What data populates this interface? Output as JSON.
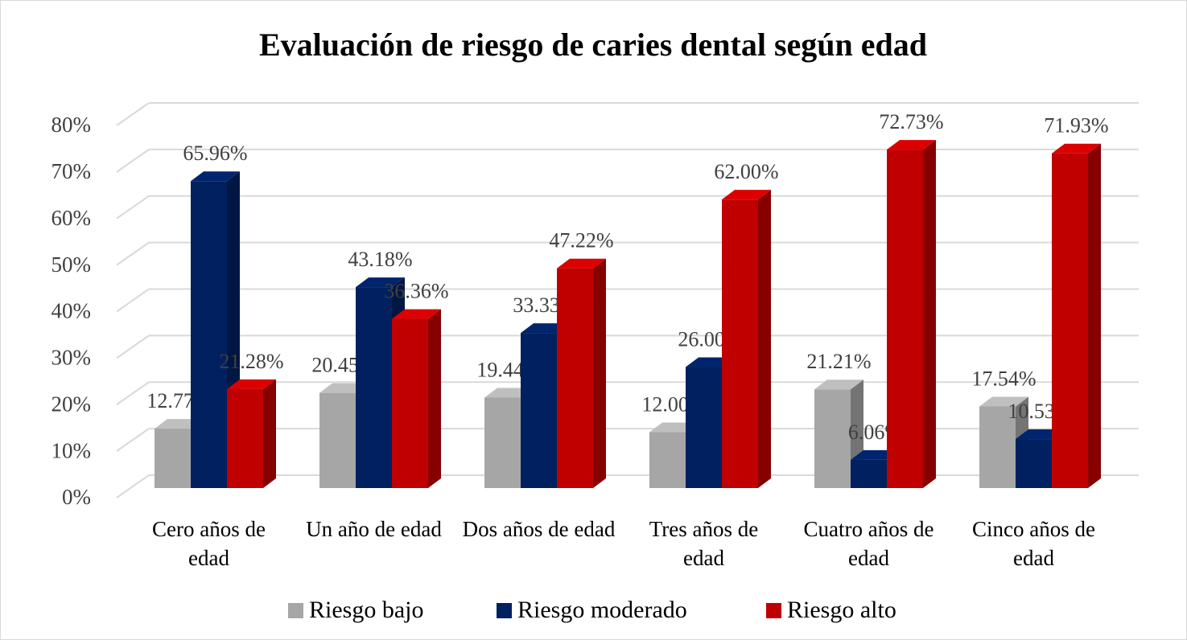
{
  "chart_data": {
    "type": "bar3d",
    "title": "Evaluación de riesgo de caries dental según edad",
    "categories": [
      "Cero años de edad",
      "Un año de edad",
      "Dos años de edad",
      "Tres años de edad",
      "Cuatro años de edad",
      "Cinco años de edad"
    ],
    "series": [
      {
        "name": "Riesgo bajo",
        "color": "#a6a6a6",
        "values": [
          12.77,
          20.45,
          19.44,
          12.0,
          21.21,
          17.54
        ],
        "value_labels": [
          "12.77%",
          "20.45%",
          "19.44%",
          "12.00%",
          "21.21%",
          "17.54%"
        ]
      },
      {
        "name": "Riesgo moderado",
        "color": "#002060",
        "values": [
          65.96,
          43.18,
          33.33,
          26.0,
          6.06,
          10.53
        ],
        "value_labels": [
          "65.96%",
          "43.18%",
          "33.33%",
          "26.00%",
          "6.06%",
          "10.53%"
        ]
      },
      {
        "name": "Riesgo alto",
        "color": "#c00000",
        "values": [
          21.28,
          36.36,
          47.22,
          62.0,
          72.73,
          71.93
        ],
        "value_labels": [
          "21.28%",
          "36.36%",
          "47.22%",
          "62.00%",
          "72.73%",
          "71.93%"
        ]
      }
    ],
    "ylim": [
      0,
      80
    ],
    "yticks": [
      {
        "value": 0,
        "label": "0%"
      },
      {
        "value": 10,
        "label": "10%"
      },
      {
        "value": 20,
        "label": "20%"
      },
      {
        "value": 30,
        "label": "30%"
      },
      {
        "value": 40,
        "label": "40%"
      },
      {
        "value": 50,
        "label": "50%"
      },
      {
        "value": 60,
        "label": "60%"
      },
      {
        "value": 70,
        "label": "70%"
      },
      {
        "value": 80,
        "label": "80%"
      }
    ],
    "grid": true,
    "legend": "bottom"
  }
}
